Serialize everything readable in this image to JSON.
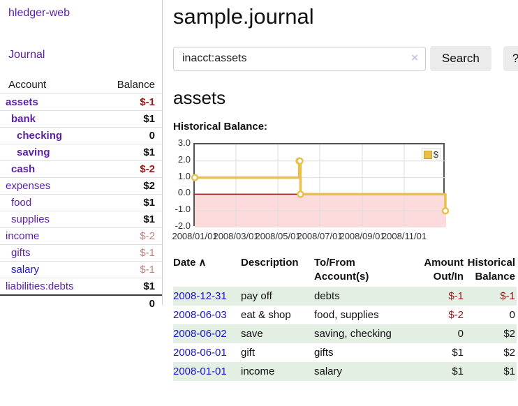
{
  "app": {
    "title": "hledger-web"
  },
  "colors": {
    "purple_link": "#5b1fa8",
    "blue_link": "#1a16c9",
    "negative": "#9e1616",
    "faded_negative": "#c57f7f",
    "row_stripe_green": "#e3efe3",
    "chart_line_gold": "#e8c04a"
  },
  "sidebar": {
    "journal_link": "Journal",
    "accounts": {
      "header_account": "Account",
      "header_balance": "Balance",
      "rows": [
        {
          "name": "assets",
          "balance": "$-1",
          "depth": 1,
          "selected": true,
          "balance_style": "neg",
          "link_color": "purple"
        },
        {
          "name": "bank",
          "balance": "$1",
          "depth": 2,
          "selected": true,
          "balance_style": "pos",
          "link_color": "purple"
        },
        {
          "name": "checking",
          "balance": "0",
          "depth": 3,
          "selected": true,
          "balance_style": "pos",
          "link_color": "purple"
        },
        {
          "name": "saving",
          "balance": "$1",
          "depth": 3,
          "selected": true,
          "balance_style": "pos",
          "link_color": "purple"
        },
        {
          "name": "cash",
          "balance": "$-2",
          "depth": 2,
          "selected": true,
          "balance_style": "neg",
          "link_color": "purple"
        },
        {
          "name": "expenses",
          "balance": "$2",
          "depth": 1,
          "selected": false,
          "balance_style": "pos",
          "link_color": "purple"
        },
        {
          "name": "food",
          "balance": "$1",
          "depth": 2,
          "selected": false,
          "balance_style": "pos",
          "link_color": "purple"
        },
        {
          "name": "supplies",
          "balance": "$1",
          "depth": 2,
          "selected": false,
          "balance_style": "pos",
          "link_color": "purple"
        },
        {
          "name": "income",
          "balance": "$-2",
          "depth": 1,
          "selected": false,
          "balance_style": "faded",
          "link_color": "purple"
        },
        {
          "name": "gifts",
          "balance": "$-1",
          "depth": 2,
          "selected": false,
          "balance_style": "faded",
          "link_color": "purple"
        },
        {
          "name": "salary",
          "balance": "$-1",
          "depth": 2,
          "selected": false,
          "balance_style": "faded",
          "link_color": "blue"
        },
        {
          "name": "liabilities:debts",
          "balance": "$1",
          "depth": 1,
          "selected": false,
          "balance_style": "pos",
          "link_color": "purple"
        }
      ],
      "total": "0"
    }
  },
  "main": {
    "title": "sample.journal",
    "search": {
      "value": "inacct:assets",
      "clear_icon": "×",
      "button_label": "Search",
      "help_label": "?"
    },
    "account_heading": "assets",
    "chart_label": "Historical Balance:"
  },
  "chart_data": {
    "type": "line",
    "step": true,
    "title": "Historical Balance:",
    "legend": {
      "label": "$",
      "position": "top-right"
    },
    "xlim": [
      0,
      366
    ],
    "ylim": [
      -2,
      3
    ],
    "grid": true,
    "series": [
      {
        "name": "$",
        "color": "#e8c04a",
        "data_points": [
          {
            "date": "2008-01-01",
            "value": 1
          },
          {
            "date": "2008-06-01",
            "value": 2
          },
          {
            "date": "2008-06-02",
            "value": 2
          },
          {
            "date": "2008-06-03",
            "value": 0
          },
          {
            "date": "2008-12-31",
            "value": -1
          }
        ],
        "points": [
          [
            0,
            1
          ],
          [
            152,
            2
          ],
          [
            153,
            2
          ],
          [
            154,
            0
          ],
          [
            365,
            -1
          ]
        ]
      }
    ],
    "x_ticks": [
      {
        "day": 0,
        "label": "2008/01/01"
      },
      {
        "day": 60,
        "label": "2008/03/01"
      },
      {
        "day": 121,
        "label": "2008/05/01"
      },
      {
        "day": 182,
        "label": "2008/07/01"
      },
      {
        "day": 244,
        "label": "2008/09/01"
      },
      {
        "day": 305,
        "label": "2008/11/01"
      }
    ],
    "y_ticks": [
      {
        "v": 3,
        "label": "3.0"
      },
      {
        "v": 2,
        "label": "2.0"
      },
      {
        "v": 1,
        "label": "1.0"
      },
      {
        "v": 0,
        "label": "0.0"
      },
      {
        "v": -1,
        "label": "-1.0"
      },
      {
        "v": -2,
        "label": "-2.0"
      }
    ],
    "style": {
      "negative_region_fill": "#fbdbdb",
      "zero_line_color": "#8f1a1a",
      "grid_color": "#dddddd",
      "border_color": "#545454",
      "marker_fill": "#ffffff"
    }
  },
  "register": {
    "headers": {
      "date": "Date",
      "date_sort_icon": "∧",
      "description": "Description",
      "accounts": "To/From Account(s)",
      "amount": "Amount Out/In",
      "balance": "Historical Balance"
    },
    "rows": [
      {
        "date": "2008-12-31",
        "description": "pay off",
        "accounts": "debts",
        "amount": "$-1",
        "balance": "$-1"
      },
      {
        "date": "2008-06-03",
        "description": "eat & shop",
        "accounts": "food, supplies",
        "amount": "$-2",
        "balance": "0"
      },
      {
        "date": "2008-06-02",
        "description": "save",
        "accounts": "saving, checking",
        "amount": "0",
        "balance": "$2"
      },
      {
        "date": "2008-06-01",
        "description": "gift",
        "accounts": "gifts",
        "amount": "$1",
        "balance": "$2"
      },
      {
        "date": "2008-01-01",
        "description": "income",
        "accounts": "salary",
        "amount": "$1",
        "balance": "$1"
      }
    ]
  }
}
